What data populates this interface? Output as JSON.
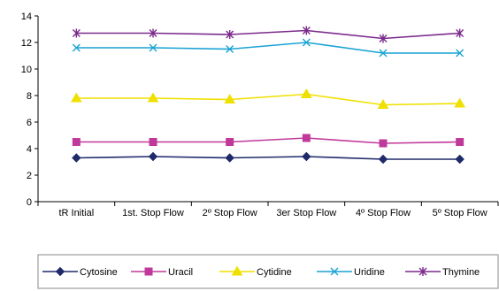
{
  "chart_data": {
    "type": "line",
    "categories": [
      "tR Initial",
      "1st. Stop Flow",
      "2º Stop Flow",
      "3er Stop Flow",
      "4º Stop Flow",
      "5º Stop Flow"
    ],
    "ylim": [
      0,
      14
    ],
    "yticks": [
      "0",
      "2",
      "4",
      "6",
      "8",
      "10",
      "12",
      "14"
    ],
    "grid": false,
    "legend_position": "bottom",
    "series": [
      {
        "name": "Cytosine",
        "color": "#1f2a6b",
        "marker": "diamond",
        "values": [
          3.3,
          3.4,
          3.3,
          3.4,
          3.2,
          3.2
        ]
      },
      {
        "name": "Uracil",
        "color": "#c0399a",
        "marker": "square",
        "values": [
          4.5,
          4.5,
          4.5,
          4.8,
          4.4,
          4.5
        ]
      },
      {
        "name": "Cytidine",
        "color": "#f0e000",
        "marker": "triangle",
        "values": [
          7.8,
          7.8,
          7.7,
          8.1,
          7.3,
          7.4
        ]
      },
      {
        "name": "Uridine",
        "color": "#1aa3d4",
        "marker": "x",
        "values": [
          11.6,
          11.6,
          11.5,
          12.0,
          11.2,
          11.2
        ]
      },
      {
        "name": "Thymine",
        "color": "#7b2a8c",
        "marker": "star",
        "values": [
          12.7,
          12.7,
          12.6,
          12.9,
          12.3,
          12.7
        ]
      }
    ]
  }
}
